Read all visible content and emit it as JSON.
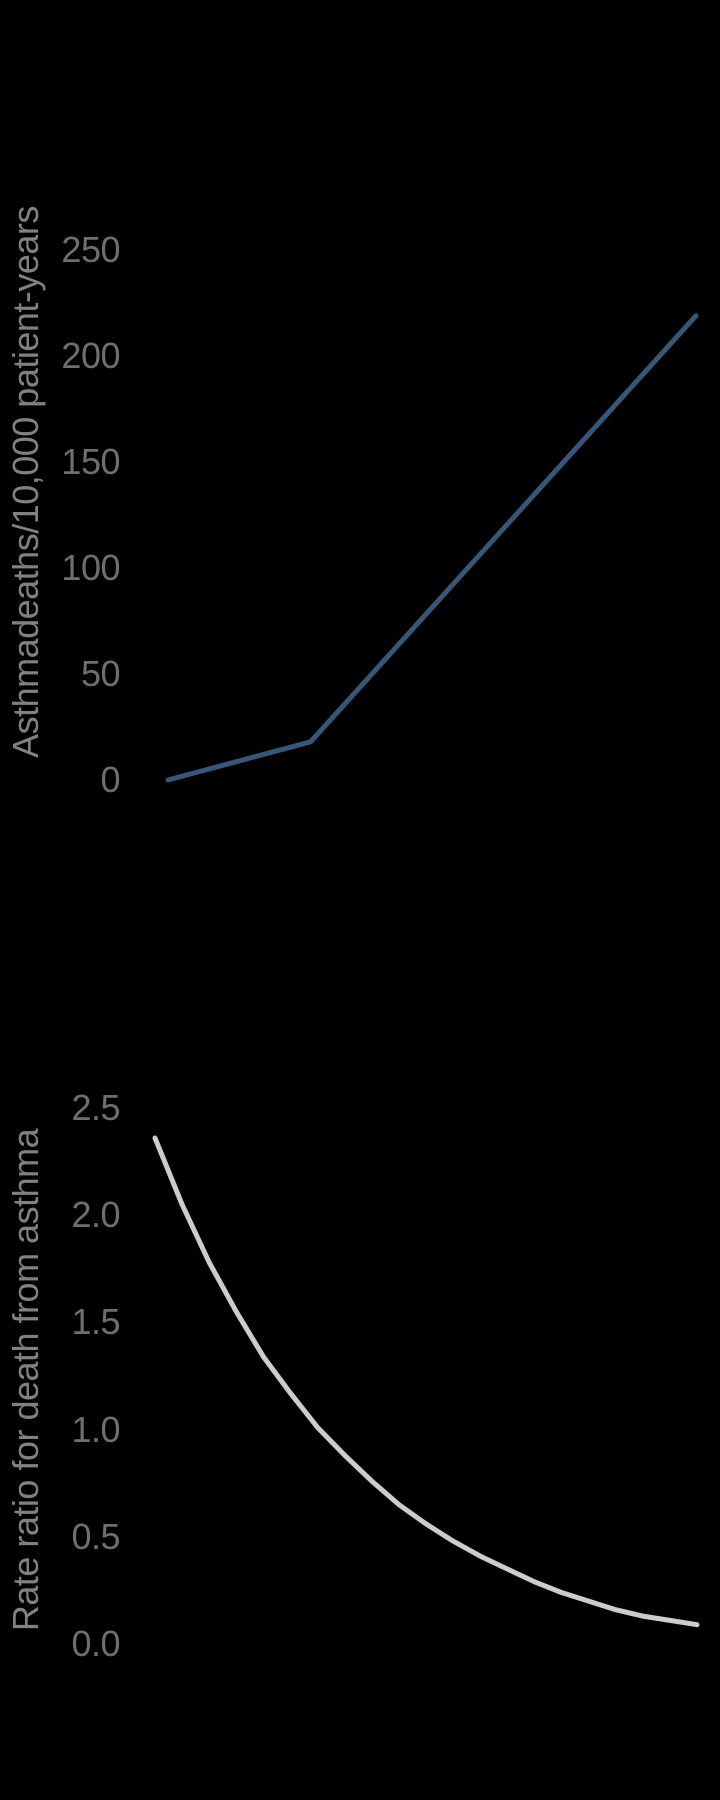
{
  "colors": {
    "background": "#000000",
    "tick_text": "#6f6f6f",
    "axis_title_text": "#818181",
    "deaths_line": "#35587a",
    "rate_ratio_curve": "#cccccc"
  },
  "chart_data": [
    {
      "type": "line",
      "title": "",
      "xlabel": "",
      "ylabel": "Asthmadeaths/10,000 patient-years",
      "ylim": [
        0,
        250
      ],
      "yticks": [
        0,
        50,
        100,
        150,
        200,
        250
      ],
      "ytick_labels": [
        "0",
        "50",
        "100",
        "150",
        "200",
        "250"
      ],
      "xtick_labels": [],
      "grid": false,
      "legend": "none",
      "line_color": "#35587a",
      "series": [
        {
          "name": "asthma-deaths",
          "x": [
            0.0,
            0.27,
            1.0
          ],
          "y": [
            0,
            18,
            219
          ]
        }
      ]
    },
    {
      "type": "line",
      "title": "",
      "xlabel": "",
      "ylabel": "Rate ratio for death from asthma",
      "ylim": [
        0,
        2.5
      ],
      "yticks": [
        0.0,
        0.5,
        1.0,
        1.5,
        2.0,
        2.5
      ],
      "ytick_labels": [
        "0.0",
        "0.5",
        "1.0",
        "1.5",
        "2.0",
        "2.5"
      ],
      "xtick_labels": [],
      "grid": false,
      "legend": "none",
      "line_color": "#cccccc",
      "series": [
        {
          "name": "rate-ratio",
          "x": [
            0.0,
            0.05,
            0.1,
            0.15,
            0.2,
            0.25,
            0.3,
            0.35,
            0.4,
            0.45,
            0.5,
            0.55,
            0.6,
            0.65,
            0.7,
            0.75,
            0.8,
            0.85,
            0.9,
            0.95,
            1.0
          ],
          "y": [
            2.36,
            2.05,
            1.78,
            1.55,
            1.34,
            1.17,
            1.01,
            0.88,
            0.76,
            0.65,
            0.56,
            0.48,
            0.41,
            0.35,
            0.29,
            0.24,
            0.2,
            0.16,
            0.13,
            0.11,
            0.09
          ]
        }
      ]
    }
  ]
}
